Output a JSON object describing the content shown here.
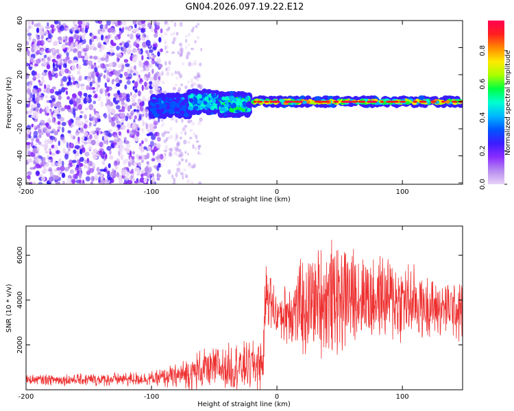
{
  "figure": {
    "title": "GN04.2026.097.19.22.E12"
  },
  "chart_data": [
    {
      "type": "heatmap",
      "xlabel": "Height of straight line (km)",
      "ylabel": "Frequency (Hz)",
      "xlim": [
        -200,
        148
      ],
      "ylim": [
        -61,
        60
      ],
      "xticks": [
        -200,
        -100,
        0,
        100
      ],
      "yticks": [
        -60,
        -40,
        -20,
        0,
        20,
        40,
        60
      ],
      "colorbar": {
        "label": "Normalized spectral amplitude",
        "range": [
          0,
          1
        ],
        "ticks": [
          "0.0",
          "0.2",
          "0.4",
          "0.6",
          "0.8"
        ],
        "colormap": [
          "#e9d3f7",
          "#b68bf0",
          "#8a2cff",
          "#3b1cff",
          "#0055ff",
          "#00b7ff",
          "#00ffd0",
          "#00ff40",
          "#aaff00",
          "#ffea00",
          "#ff8a00",
          "#ff1f1f",
          "#ff0050"
        ]
      },
      "structure": {
        "noise_region_x": [
          -200,
          -92
        ],
        "sparse_region_x": [
          -92,
          -60
        ],
        "signal_onset_x": -100,
        "signal_center_hz": 0,
        "signal_segments": [
          {
            "x": [
              -100,
              -70
            ],
            "freq_center": -3,
            "amplitude": 0.3
          },
          {
            "x": [
              -70,
              -45
            ],
            "freq_center": 0,
            "amplitude": 0.4
          },
          {
            "x": [
              -45,
              -22
            ],
            "freq_center": -2,
            "amplitude": 0.45
          },
          {
            "x": [
              -22,
              148
            ],
            "freq_center": 0,
            "amplitude": 0.85
          }
        ]
      }
    },
    {
      "type": "line",
      "xlabel": "Height of straight line (km)",
      "ylabel": "SNR (10 * v/v)",
      "xlim": [
        -200,
        148
      ],
      "ylim": [
        0,
        7300
      ],
      "xticks": [
        -200,
        -100,
        0,
        100
      ],
      "yticks": [
        2000,
        4000,
        6000
      ],
      "line_color": "#ee3030",
      "series_envelope": [
        {
          "x": -200,
          "mean": 450,
          "spread": 250
        },
        {
          "x": -150,
          "mean": 450,
          "spread": 300
        },
        {
          "x": -100,
          "mean": 500,
          "spread": 350
        },
        {
          "x": -80,
          "mean": 600,
          "spread": 600
        },
        {
          "x": -60,
          "mean": 900,
          "spread": 1000
        },
        {
          "x": -40,
          "mean": 1000,
          "spread": 1100
        },
        {
          "x": -20,
          "mean": 1100,
          "spread": 1300
        },
        {
          "x": -11,
          "mean": 1200,
          "spread": 1300
        },
        {
          "x": -9,
          "mean": 4500,
          "spread": 1500
        },
        {
          "x": 0,
          "mean": 3300,
          "spread": 1200
        },
        {
          "x": 20,
          "mean": 3700,
          "spread": 2400
        },
        {
          "x": 45,
          "mean": 4200,
          "spread": 2800
        },
        {
          "x": 70,
          "mean": 4200,
          "spread": 2300
        },
        {
          "x": 100,
          "mean": 4000,
          "spread": 2000
        },
        {
          "x": 130,
          "mean": 3600,
          "spread": 1300
        },
        {
          "x": 148,
          "mean": 3500,
          "spread": 1500
        }
      ]
    }
  ]
}
